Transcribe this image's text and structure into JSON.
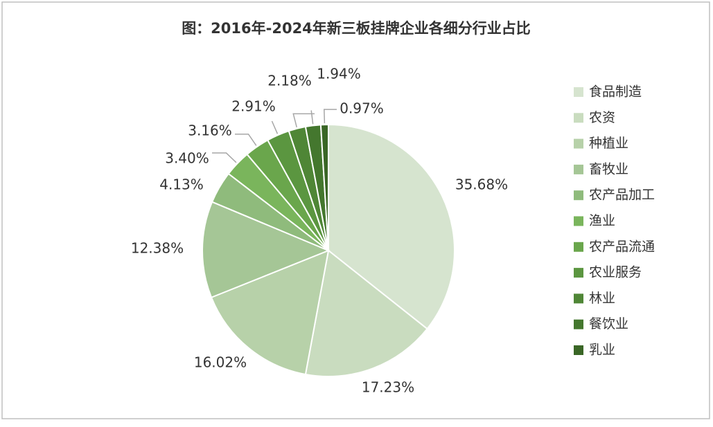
{
  "chart_data": {
    "type": "pie",
    "title": "图：2016年-2024年新三板挂牌企业各细分行业占比",
    "categories": [
      "食品制造",
      "农资",
      "种植业",
      "畜牧业",
      "农产品加工",
      "渔业",
      "农产品流通",
      "农业服务",
      "林业",
      "餐饮业",
      "乳业"
    ],
    "values": [
      35.68,
      17.23,
      16.02,
      12.38,
      4.13,
      3.4,
      3.16,
      2.91,
      2.18,
      1.94,
      0.97
    ],
    "value_labels": [
      "35.68%",
      "17.23%",
      "16.02%",
      "12.38%",
      "4.13%",
      "3.40%",
      "3.16%",
      "2.91%",
      "2.18%",
      "1.94%",
      "0.97%"
    ],
    "colors": [
      "#d6e4cf",
      "#c9dcbf",
      "#b7d1a9",
      "#a5c696",
      "#8fbb7c",
      "#7ab55c",
      "#6aa64c",
      "#5b9640",
      "#4f8636",
      "#44772e",
      "#3a6626"
    ],
    "legend": "right"
  }
}
